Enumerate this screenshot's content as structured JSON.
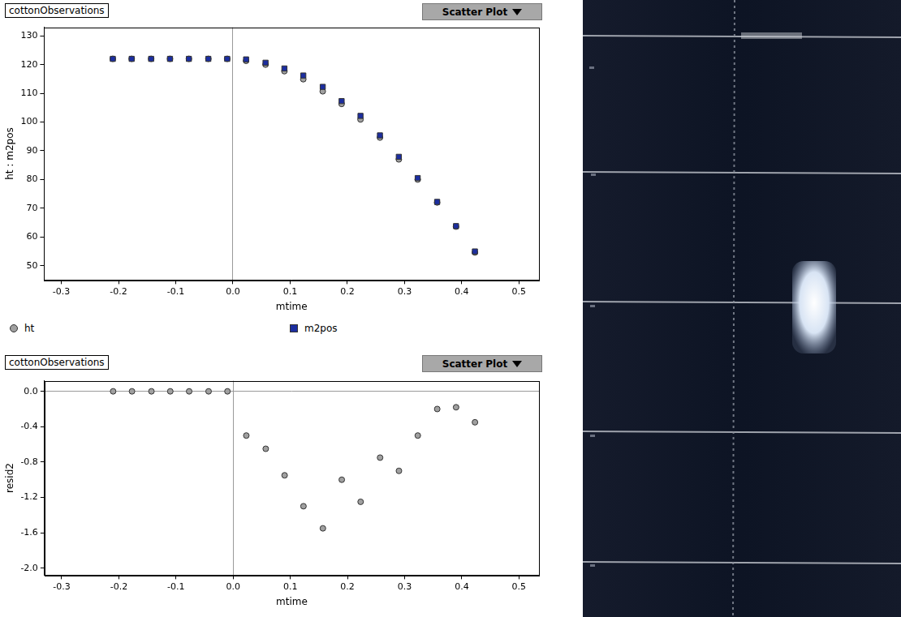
{
  "chart_data": [
    {
      "type": "scatter",
      "title": "cottonObservations",
      "annotations": [
        "Scatter Plot"
      ],
      "x_label": "mtime",
      "y_label": "ht : m2pos",
      "x": [
        -0.21,
        -0.177,
        -0.143,
        -0.11,
        -0.077,
        -0.043,
        -0.01,
        0.023,
        0.057,
        0.09,
        0.123,
        0.157,
        0.19,
        0.223,
        0.257,
        0.29,
        0.323,
        0.357,
        0.39,
        0.423
      ],
      "series": [
        {
          "name": "ht",
          "color": "#a0a0a0",
          "marker": "circle",
          "values": [
            122,
            122,
            122,
            122,
            122,
            122,
            122,
            121.3,
            120.0,
            117.7,
            114.9,
            110.7,
            106.3,
            100.9,
            94.6,
            87.0,
            80.0,
            72.0,
            63.6,
            54.6
          ]
        },
        {
          "name": "m2pos",
          "color": "#1c2ea0",
          "marker": "square",
          "values": [
            122,
            122,
            122,
            122,
            122,
            122,
            122,
            121.8,
            120.65,
            118.65,
            116.2,
            112.25,
            107.3,
            102.15,
            95.35,
            87.9,
            80.5,
            72.2,
            63.78,
            54.95
          ]
        }
      ],
      "xlim": [
        -0.33,
        0.535
      ],
      "xticks": [
        -0.3,
        -0.2,
        -0.1,
        {
          "value": 0,
          "label": "0.0"
        },
        0.1,
        0.2,
        0.3,
        0.4,
        0.5
      ],
      "ylim": [
        45,
        133
      ],
      "yticks": [
        50,
        60,
        70,
        80,
        90,
        100,
        110,
        120,
        130
      ],
      "grid": false,
      "legend": "bottom"
    },
    {
      "type": "scatter",
      "title": "cottonObservations",
      "annotations": [
        "Scatter Plot"
      ],
      "x_label": "mtime",
      "y_label": "resid2",
      "x": [
        -0.21,
        -0.177,
        -0.143,
        -0.11,
        -0.077,
        -0.043,
        -0.01,
        0.023,
        0.057,
        0.09,
        0.123,
        0.157,
        0.19,
        0.223,
        0.257,
        0.29,
        0.323,
        0.357,
        0.39,
        0.423
      ],
      "values": [
        0,
        0,
        0,
        0,
        0,
        0,
        0,
        -0.5,
        -0.65,
        -0.95,
        -1.3,
        -1.55,
        -1.0,
        -1.25,
        -0.75,
        -0.9,
        -0.5,
        -0.2,
        -0.18,
        -0.35
      ],
      "color": "#a0a0a0",
      "marker": "circle",
      "xlim": [
        -0.33,
        0.535
      ],
      "xticks": [
        -0.3,
        -0.2,
        -0.1,
        {
          "value": 0,
          "label": "0.0"
        },
        0.1,
        0.2,
        0.3,
        0.4,
        0.5
      ],
      "ylim": [
        -2.08,
        0.12
      ],
      "yticks": [
        {
          "value": -2,
          "label": "-2.0"
        },
        -1.6,
        -1.2,
        -0.8,
        -0.4,
        {
          "value": 0,
          "label": "0.0"
        }
      ],
      "grid": false
    }
  ]
}
